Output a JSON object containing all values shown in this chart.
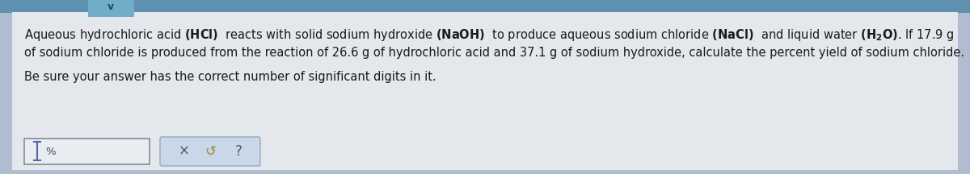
{
  "outer_bg_color": "#b0bdd0",
  "panel_color": "#e4e8ed",
  "top_strip_color": "#6090b0",
  "tab_color": "#70aec8",
  "tab_chevron": "v",
  "text_line1a": "Aqueous hydrochloric acid ",
  "text_line1b": "(HCl)",
  "text_line1c": "  reacts with solid sodium hydroxide ",
  "text_line1d": "(NaOH)",
  "text_line1e": "  to produce aqueous sodium chloride ",
  "text_line1f": "(NaCl)",
  "text_line1g": "  and liquid water ",
  "text_line1h_math": "$\\mathbf{(H_2O)}$",
  "text_line1i": ". If 17.9 g",
  "text_line2": "of sodium chloride is produced from the reaction of 26.6 g of hydrochloric acid and 37.1 g of sodium hydroxide, calculate the percent yield of sodium chloride.",
  "text_line3": "Be sure your answer has the correct number of significant digits in it.",
  "font_size": 10.5,
  "text_color": "#1a1a1a",
  "input_box_color": "#e8edf2",
  "input_box_border": "#888899",
  "btn_box_color": "#c8d8e8",
  "btn_box_border": "#9aaabb",
  "cursor_color": "#5566aa",
  "pct_color": "#444466",
  "icon_color": "#555566",
  "undo_color": "#aa8833"
}
